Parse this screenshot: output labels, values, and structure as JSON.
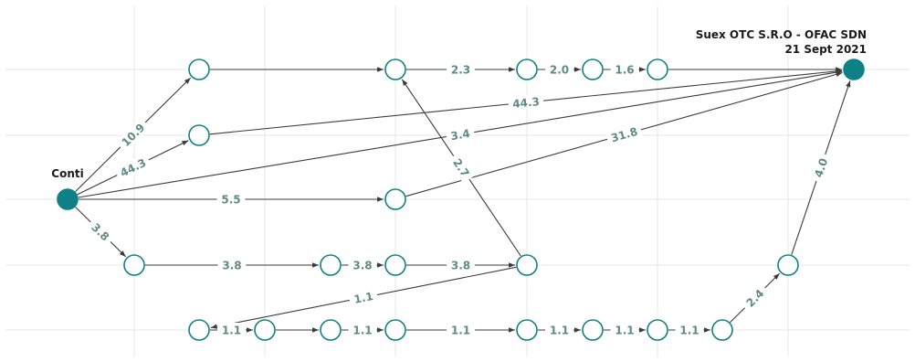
{
  "colors": {
    "node_stroke": "#0f8086",
    "node_fill_highlight": "#0f8086",
    "edge_color": "#3b3b3b",
    "edge_label_color": "#5f8a86",
    "grid_color": "#e7e7e7"
  },
  "source_label": "Conti",
  "target_label_line1": "Suex OTC S.R.O - OFAC SDN",
  "target_label_line2": "21 Sept 2021",
  "nodes": [
    {
      "id": "conti",
      "highlight": true
    },
    {
      "id": "a1",
      "highlight": false
    },
    {
      "id": "a2",
      "highlight": false
    },
    {
      "id": "a3",
      "highlight": false
    },
    {
      "id": "a4",
      "highlight": false
    },
    {
      "id": "a5",
      "highlight": false
    },
    {
      "id": "b1",
      "highlight": false
    },
    {
      "id": "c1",
      "highlight": false
    },
    {
      "id": "d1",
      "highlight": false
    },
    {
      "id": "d2",
      "highlight": false
    },
    {
      "id": "d3",
      "highlight": false
    },
    {
      "id": "d4",
      "highlight": false
    },
    {
      "id": "e1",
      "highlight": false
    },
    {
      "id": "e2",
      "highlight": false
    },
    {
      "id": "e3",
      "highlight": false
    },
    {
      "id": "e4",
      "highlight": false
    },
    {
      "id": "e5",
      "highlight": false
    },
    {
      "id": "e6",
      "highlight": false
    },
    {
      "id": "e7",
      "highlight": false
    },
    {
      "id": "e8",
      "highlight": false
    },
    {
      "id": "e9",
      "highlight": false
    },
    {
      "id": "e10",
      "highlight": false
    },
    {
      "id": "f1",
      "highlight": false
    },
    {
      "id": "suex",
      "highlight": true
    }
  ],
  "edges": [
    {
      "from": "conti",
      "to": "a1",
      "label": "10.9"
    },
    {
      "from": "conti",
      "to": "b1",
      "label": "44.3"
    },
    {
      "from": "conti",
      "to": "suex",
      "label": "3.4"
    },
    {
      "from": "conti",
      "to": "c1",
      "label": "5.5"
    },
    {
      "from": "conti",
      "to": "d1",
      "label": "3.8"
    },
    {
      "from": "a1",
      "to": "a2",
      "label": ""
    },
    {
      "from": "a2",
      "to": "a3",
      "label": "2.3"
    },
    {
      "from": "a3",
      "to": "a4",
      "label": "2.0"
    },
    {
      "from": "a4",
      "to": "a5",
      "label": "1.6"
    },
    {
      "from": "a5",
      "to": "suex",
      "label": ""
    },
    {
      "from": "b1",
      "to": "suex",
      "label": "44.3"
    },
    {
      "from": "c1",
      "to": "suex",
      "label": "31.8"
    },
    {
      "from": "d1",
      "to": "d2",
      "label": "3.8"
    },
    {
      "from": "d2",
      "to": "d3",
      "label": "3.8"
    },
    {
      "from": "d3",
      "to": "d4",
      "label": "3.8"
    },
    {
      "from": "d4",
      "to": "a2",
      "label": "2.7"
    },
    {
      "from": "d4",
      "to": "e1",
      "label": "1.1"
    },
    {
      "from": "e1",
      "to": "e2",
      "label": "1.1"
    },
    {
      "from": "e2",
      "to": "e3",
      "label": ""
    },
    {
      "from": "e3",
      "to": "e4",
      "label": "1.1"
    },
    {
      "from": "e4",
      "to": "e5",
      "label": "1.1"
    },
    {
      "from": "e5",
      "to": "e6",
      "label": "1.1"
    },
    {
      "from": "e6",
      "to": "e7",
      "label": "1.1"
    },
    {
      "from": "e7",
      "to": "e8",
      "label": "1.1"
    },
    {
      "from": "e8",
      "to": "e9",
      "label": "2.4"
    },
    {
      "from": "e9",
      "to": "suex",
      "label": "4.0"
    }
  ]
}
